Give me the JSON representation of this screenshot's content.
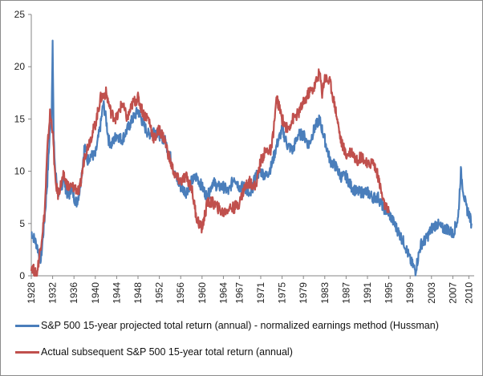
{
  "chart_data": {
    "type": "line",
    "ylim": [
      0,
      25
    ],
    "yticks": [
      0,
      5,
      10,
      15,
      20,
      25
    ],
    "xlim": [
      1928,
      2011
    ],
    "xticks": [
      "1928",
      "1932",
      "1936",
      "1940",
      "1944",
      "1948",
      "1952",
      "1956",
      "1960",
      "1964",
      "1967",
      "1971",
      "1975",
      "1979",
      "1983",
      "1987",
      "1991",
      "1995",
      "1999",
      "2003",
      "2007",
      "2010"
    ],
    "grid": false,
    "legend_position": "bottom",
    "series": [
      {
        "name": "S&P 500 15-year projected total return (annual)  - normalized earnings method (Hussman)",
        "color": "#4a7ebb",
        "x": [
          1928,
          1929,
          1929.8,
          1930.5,
          1931,
          1931.5,
          1931.8,
          1932,
          1932.2,
          1932.5,
          1933,
          1933.5,
          1934,
          1934.5,
          1935,
          1935.5,
          1936,
          1936.5,
          1937,
          1937.5,
          1938,
          1938.5,
          1939,
          1940,
          1941,
          1941.5,
          1942,
          1942.5,
          1943,
          1944,
          1945,
          1946,
          1947,
          1948,
          1949,
          1949.5,
          1950,
          1951,
          1952,
          1953,
          1954,
          1955,
          1956,
          1957,
          1958,
          1959,
          1960,
          1961,
          1962,
          1963,
          1964,
          1965,
          1966,
          1967,
          1968,
          1969,
          1970,
          1971,
          1972,
          1973,
          1974,
          1975,
          1976,
          1977,
          1978,
          1979,
          1980,
          1981,
          1982,
          1983,
          1984,
          1985,
          1986,
          1987,
          1988,
          1989,
          1990,
          1991,
          1992,
          1993,
          1994,
          1995,
          1996,
          1997,
          1998,
          1999,
          2000,
          2001,
          2002,
          2003,
          2004,
          2005,
          2006,
          2007,
          2008,
          2008.5,
          2009,
          2009.5,
          2010,
          2010.5
        ],
        "y": [
          4.2,
          3.0,
          1.5,
          5.5,
          9.0,
          14.0,
          15.0,
          23.0,
          13.0,
          10.0,
          8.0,
          7.8,
          9.5,
          8.2,
          7.5,
          8.5,
          7.5,
          7.0,
          8.0,
          10.0,
          12.5,
          11.0,
          11.5,
          11.5,
          14.5,
          16.5,
          15.0,
          13.0,
          12.5,
          13.5,
          13.0,
          14.0,
          15.0,
          15.8,
          14.5,
          14.0,
          13.5,
          14.0,
          13.5,
          13.0,
          11.5,
          9.5,
          8.5,
          8.0,
          9.0,
          9.5,
          8.5,
          7.5,
          9.0,
          8.5,
          8.5,
          8.0,
          9.5,
          8.5,
          8.5,
          7.5,
          9.5,
          10.0,
          9.5,
          10.5,
          12.5,
          14.0,
          12.5,
          12.0,
          13.5,
          13.5,
          12.5,
          14.0,
          15.0,
          13.0,
          11.0,
          10.5,
          9.5,
          9.5,
          8.5,
          8.0,
          8.0,
          8.0,
          7.5,
          7.5,
          6.5,
          6.0,
          5.0,
          4.0,
          3.0,
          1.5,
          0.5,
          3.0,
          3.5,
          4.5,
          5.0,
          4.5,
          4.5,
          4.0,
          5.5,
          10.0,
          8.0,
          6.5,
          6.0,
          5.0
        ]
      },
      {
        "name": "Actual subsequent S&P 500 15-year total return (annual)",
        "color": "#c0504d",
        "x": [
          1928,
          1929,
          1929.8,
          1930.5,
          1931,
          1931.5,
          1932,
          1932.5,
          1933,
          1934,
          1935,
          1936,
          1937,
          1938,
          1939,
          1940,
          1941,
          1942,
          1943,
          1944,
          1945,
          1946,
          1947,
          1948,
          1949,
          1950,
          1951,
          1952,
          1953,
          1954,
          1955,
          1956,
          1957,
          1958,
          1959,
          1960,
          1961,
          1962,
          1963,
          1964,
          1965,
          1966,
          1967,
          1968,
          1969,
          1970,
          1971,
          1972,
          1973,
          1974,
          1975,
          1976,
          1977,
          1978,
          1979,
          1980,
          1981,
          1982,
          1982.5,
          1983,
          1984,
          1985,
          1986,
          1987,
          1988,
          1989,
          1990,
          1991,
          1992,
          1993,
          1994,
          1995
        ],
        "y": [
          1.0,
          0.0,
          3.0,
          6.0,
          12.0,
          15.5,
          14.0,
          9.0,
          7.8,
          9.5,
          8.5,
          8.5,
          8.0,
          11.5,
          13.0,
          14.5,
          17.0,
          17.5,
          15.5,
          15.0,
          16.5,
          15.0,
          16.5,
          17.0,
          15.5,
          15.0,
          13.0,
          14.0,
          13.0,
          11.0,
          9.5,
          9.0,
          9.5,
          8.5,
          5.5,
          4.5,
          7.0,
          7.0,
          6.5,
          6.0,
          6.5,
          6.5,
          7.0,
          8.5,
          9.0,
          8.5,
          11.0,
          12.0,
          12.0,
          17.0,
          15.0,
          14.0,
          15.0,
          15.5,
          16.5,
          17.5,
          18.0,
          19.5,
          17.5,
          19.0,
          18.5,
          16.0,
          13.0,
          11.5,
          12.0,
          11.0,
          11.5,
          10.5,
          11.0,
          9.5,
          7.0,
          6.0
        ]
      }
    ]
  }
}
